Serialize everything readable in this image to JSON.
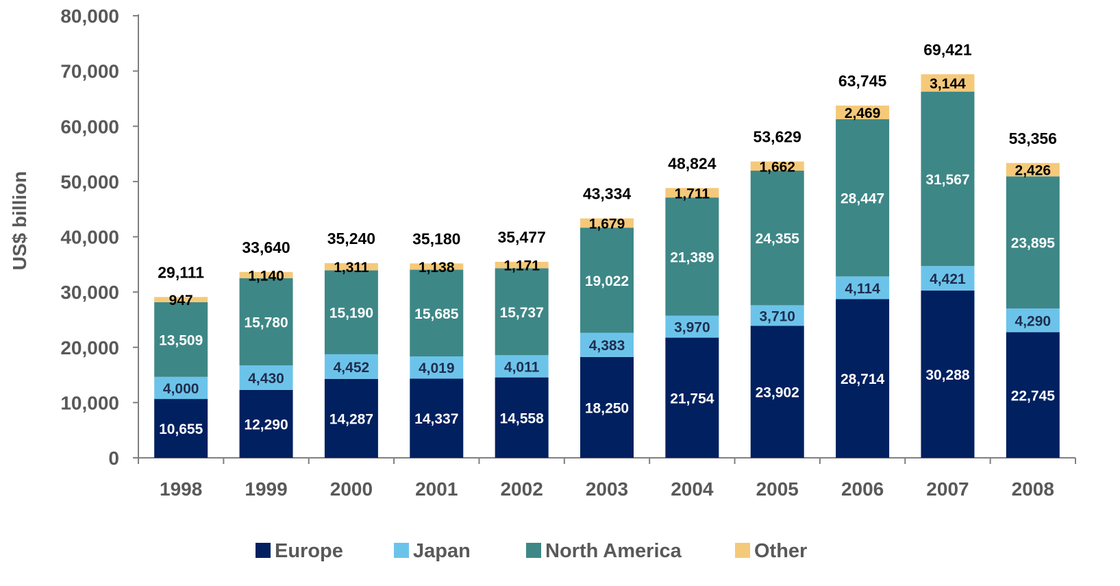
{
  "chart_data": {
    "type": "bar",
    "stacked": true,
    "title": "",
    "xlabel": "",
    "ylabel": "US$ billion",
    "ylim": [
      0,
      80000
    ],
    "yticks": [
      0,
      10000,
      20000,
      30000,
      40000,
      50000,
      60000,
      70000,
      80000
    ],
    "ytick_labels": [
      "0",
      "10,000",
      "20,000",
      "30,000",
      "40,000",
      "50,000",
      "60,000",
      "70,000",
      "80,000"
    ],
    "categories": [
      "1998",
      "1999",
      "2000",
      "2001",
      "2002",
      "2003",
      "2004",
      "2005",
      "2006",
      "2007",
      "2008"
    ],
    "series": [
      {
        "name": "Europe",
        "color": "#002060",
        "label_color": "#ffffff",
        "values": [
          10655,
          12290,
          14287,
          14337,
          14558,
          18250,
          21754,
          23902,
          28714,
          30288,
          22745
        ],
        "labels": [
          "10,655",
          "12,290",
          "14,287",
          "14,337",
          "14,558",
          "18,250",
          "21,754",
          "23,902",
          "28,714",
          "30,288",
          "22,745"
        ]
      },
      {
        "name": "Japan",
        "color": "#6CC3EA",
        "label_color": "#1f2d4d",
        "values": [
          4000,
          4430,
          4452,
          4019,
          4011,
          4383,
          3970,
          3710,
          4114,
          4421,
          4290
        ],
        "labels": [
          "4,000",
          "4,430",
          "4,452",
          "4,019",
          "4,011",
          "4,383",
          "3,970",
          "3,710",
          "4,114",
          "4,421",
          "4,290"
        ]
      },
      {
        "name": "North America",
        "color": "#3E8787",
        "label_color": "#ffffff",
        "values": [
          13509,
          15780,
          15190,
          15685,
          15737,
          19022,
          21389,
          24355,
          28447,
          31567,
          23895
        ],
        "labels": [
          "13,509",
          "15,780",
          "15,190",
          "15,685",
          "15,737",
          "19,022",
          "21,389",
          "24,355",
          "28,447",
          "31,567",
          "23,895"
        ]
      },
      {
        "name": "Other",
        "color": "#F5C97A",
        "label_color": "#000000",
        "values": [
          947,
          1140,
          1311,
          1138,
          1171,
          1679,
          1711,
          1662,
          2469,
          3144,
          2426
        ],
        "labels": [
          "947",
          "1,140",
          "1,311",
          "1,138",
          "1,171",
          "1,679",
          "1,711",
          "1,662",
          "2,469",
          "3,144",
          "2,426"
        ]
      }
    ],
    "totals": [
      29111,
      33640,
      35240,
      35180,
      35477,
      43334,
      48824,
      53629,
      63745,
      69421,
      53356
    ],
    "total_labels": [
      "29,111",
      "33,640",
      "35,240",
      "35,180",
      "35,477",
      "43,334",
      "48,824",
      "53,629",
      "63,745",
      "69,421",
      "53,356"
    ],
    "grid": false,
    "legend_position": "bottom"
  }
}
